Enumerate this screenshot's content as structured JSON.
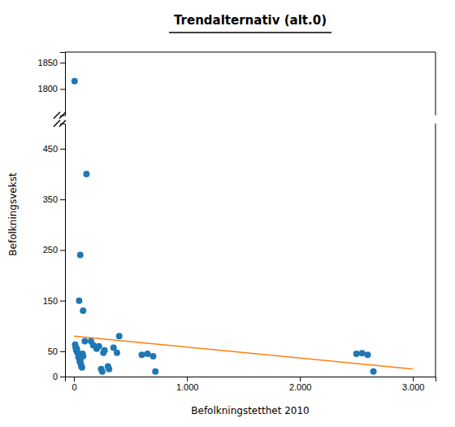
{
  "chart_data": [
    {
      "type": "scatter",
      "title": "Trendalternativ (alt.0)",
      "xlim": [
        -80,
        3200
      ],
      "ylim": [
        1750,
        1870
      ],
      "yticks": [
        1800,
        1850
      ],
      "tick_labels": "y",
      "series": [
        {
          "type": "scatter",
          "x": [
            5
          ],
          "values": [
            1815
          ]
        }
      ]
    },
    {
      "type": "scatter",
      "xlabel": "Befolkningstetthet 2010",
      "ylabel": "Befolkningsvekst",
      "xlim": [
        -80,
        3200
      ],
      "ylim": [
        0,
        500
      ],
      "xticks": [
        0,
        {
          "value": 1000,
          "label": "1.000"
        },
        {
          "value": 2000,
          "label": "2.000"
        },
        {
          "value": 3000,
          "label": "3.000"
        }
      ],
      "yticks": [
        0,
        50,
        150,
        250,
        350,
        450
      ],
      "series": [
        {
          "type": "scatter",
          "x": [
            55,
            45,
            80,
            95,
            10,
            15,
            20,
            25,
            30,
            35,
            40,
            50,
            55,
            60,
            65,
            70,
            75,
            80,
            110,
            150,
            170,
            200,
            220,
            240,
            250,
            260,
            270,
            300,
            310,
            350,
            380,
            400,
            600,
            650,
            700,
            720,
            2500,
            2550,
            2600,
            2650
          ],
          "values": [
            240,
            150,
            130,
            70,
            63,
            57,
            52,
            55,
            47,
            46,
            38,
            30,
            32,
            25,
            20,
            18,
            45,
            40,
            400,
            70,
            62,
            55,
            60,
            15,
            10,
            47,
            52,
            20,
            15,
            57,
            47,
            80,
            43,
            45,
            40,
            10,
            45,
            46,
            43,
            10
          ]
        },
        {
          "type": "line",
          "x": [
            0,
            3000
          ],
          "values": [
            80,
            15
          ]
        }
      ]
    }
  ]
}
